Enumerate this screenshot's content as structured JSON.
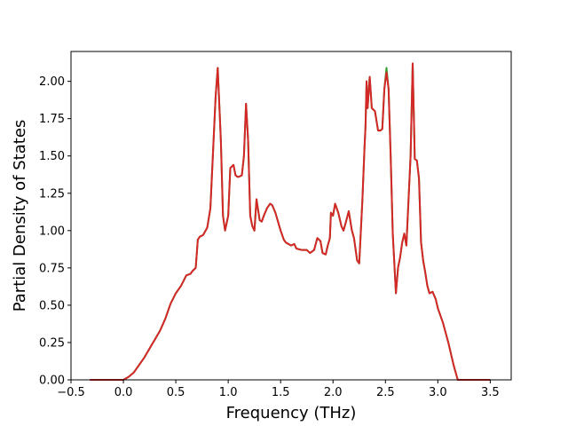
{
  "chart_data": {
    "type": "line",
    "title": "",
    "xlabel": "Frequency (THz)",
    "ylabel": "Partial Density of States",
    "xlim": [
      -0.5,
      3.7
    ],
    "ylim": [
      0.0,
      2.2
    ],
    "xticks": [
      -0.5,
      0.0,
      0.5,
      1.0,
      1.5,
      2.0,
      2.5,
      3.0,
      3.5
    ],
    "xtick_labels": [
      "−0.5",
      "0.0",
      "0.5",
      "1.0",
      "1.5",
      "2.0",
      "2.5",
      "3.0",
      "3.5"
    ],
    "yticks": [
      0.0,
      0.25,
      0.5,
      0.75,
      1.0,
      1.25,
      1.5,
      1.75,
      2.0
    ],
    "ytick_labels": [
      "0.00",
      "0.25",
      "0.50",
      "0.75",
      "1.00",
      "1.25",
      "1.50",
      "1.75",
      "2.00"
    ],
    "grid": false,
    "series": [
      {
        "color": "#2ca02c",
        "x": [
          -0.32,
          0.0,
          0.05,
          0.1,
          0.15,
          0.2,
          0.25,
          0.3,
          0.35,
          0.4,
          0.45,
          0.5,
          0.55,
          0.6,
          0.64,
          0.66,
          0.69,
          0.71,
          0.73,
          0.76,
          0.8,
          0.83,
          0.86,
          0.88,
          0.9,
          0.93,
          0.95,
          0.97,
          1.0,
          1.02,
          1.05,
          1.07,
          1.09,
          1.1,
          1.13,
          1.15,
          1.17,
          1.19,
          1.21,
          1.23,
          1.25,
          1.27,
          1.3,
          1.32,
          1.34,
          1.37,
          1.4,
          1.42,
          1.45,
          1.5,
          1.53,
          1.55,
          1.6,
          1.63,
          1.65,
          1.7,
          1.75,
          1.78,
          1.82,
          1.85,
          1.88,
          1.9,
          1.93,
          1.95,
          1.97,
          1.98,
          2.0,
          2.02,
          2.05,
          2.08,
          2.1,
          2.12,
          2.15,
          2.18,
          2.2,
          2.23,
          2.25,
          2.28,
          2.3,
          2.31,
          2.32,
          2.33,
          2.35,
          2.37,
          2.4,
          2.43,
          2.45,
          2.47,
          2.49,
          2.51,
          2.53,
          2.55,
          2.57,
          2.6,
          2.62,
          2.64,
          2.66,
          2.68,
          2.7,
          2.72,
          2.74,
          2.76,
          2.78,
          2.8,
          2.82,
          2.84,
          2.86,
          2.88,
          2.9,
          2.92,
          2.95,
          2.98,
          3.0,
          3.05,
          3.1,
          3.15,
          3.17,
          3.19,
          3.5
        ],
        "y": [
          0.0,
          0.0,
          0.02,
          0.05,
          0.1,
          0.15,
          0.21,
          0.27,
          0.33,
          0.41,
          0.51,
          0.58,
          0.63,
          0.7,
          0.71,
          0.73,
          0.75,
          0.94,
          0.96,
          0.97,
          1.02,
          1.15,
          1.6,
          1.9,
          2.09,
          1.6,
          1.1,
          1.0,
          1.1,
          1.42,
          1.44,
          1.37,
          1.36,
          1.36,
          1.37,
          1.5,
          1.85,
          1.6,
          1.1,
          1.03,
          1.0,
          1.21,
          1.07,
          1.06,
          1.1,
          1.15,
          1.18,
          1.17,
          1.12,
          1.0,
          0.94,
          0.92,
          0.9,
          0.91,
          0.88,
          0.87,
          0.87,
          0.85,
          0.87,
          0.95,
          0.93,
          0.85,
          0.84,
          0.9,
          0.95,
          1.12,
          1.1,
          1.18,
          1.12,
          1.03,
          1.0,
          1.05,
          1.13,
          1.0,
          0.95,
          0.8,
          0.78,
          1.2,
          1.55,
          1.7,
          2.0,
          1.82,
          2.03,
          1.82,
          1.8,
          1.67,
          1.67,
          1.68,
          1.95,
          2.09,
          1.95,
          1.5,
          0.98,
          0.58,
          0.75,
          0.82,
          0.92,
          0.98,
          0.9,
          1.2,
          1.5,
          2.12,
          1.48,
          1.47,
          1.35,
          0.92,
          0.8,
          0.72,
          0.63,
          0.58,
          0.59,
          0.54,
          0.48,
          0.38,
          0.25,
          0.1,
          0.05,
          0.0,
          0.0
        ]
      },
      {
        "color": "#d62728",
        "x": [
          -0.32,
          0.0,
          0.05,
          0.1,
          0.15,
          0.2,
          0.25,
          0.3,
          0.35,
          0.4,
          0.45,
          0.5,
          0.55,
          0.6,
          0.64,
          0.66,
          0.69,
          0.71,
          0.73,
          0.76,
          0.8,
          0.83,
          0.86,
          0.88,
          0.9,
          0.93,
          0.95,
          0.97,
          1.0,
          1.02,
          1.05,
          1.07,
          1.09,
          1.1,
          1.13,
          1.15,
          1.17,
          1.19,
          1.21,
          1.23,
          1.25,
          1.27,
          1.3,
          1.32,
          1.34,
          1.37,
          1.4,
          1.42,
          1.45,
          1.5,
          1.53,
          1.55,
          1.6,
          1.63,
          1.65,
          1.7,
          1.75,
          1.78,
          1.82,
          1.85,
          1.88,
          1.9,
          1.93,
          1.95,
          1.97,
          1.98,
          2.0,
          2.02,
          2.05,
          2.08,
          2.1,
          2.12,
          2.15,
          2.18,
          2.2,
          2.23,
          2.25,
          2.28,
          2.3,
          2.31,
          2.32,
          2.33,
          2.35,
          2.37,
          2.4,
          2.43,
          2.45,
          2.47,
          2.49,
          2.51,
          2.53,
          2.55,
          2.57,
          2.6,
          2.62,
          2.64,
          2.66,
          2.68,
          2.7,
          2.72,
          2.74,
          2.76,
          2.78,
          2.8,
          2.82,
          2.84,
          2.86,
          2.88,
          2.9,
          2.92,
          2.95,
          2.98,
          3.0,
          3.05,
          3.1,
          3.15,
          3.17,
          3.19,
          3.5
        ],
        "y": [
          0.0,
          0.0,
          0.02,
          0.05,
          0.1,
          0.15,
          0.21,
          0.27,
          0.33,
          0.41,
          0.51,
          0.58,
          0.63,
          0.7,
          0.71,
          0.73,
          0.75,
          0.94,
          0.96,
          0.97,
          1.02,
          1.15,
          1.6,
          1.9,
          2.09,
          1.6,
          1.1,
          1.0,
          1.1,
          1.42,
          1.44,
          1.37,
          1.36,
          1.36,
          1.37,
          1.5,
          1.85,
          1.6,
          1.1,
          1.03,
          1.0,
          1.21,
          1.07,
          1.06,
          1.1,
          1.15,
          1.18,
          1.17,
          1.12,
          1.0,
          0.94,
          0.92,
          0.9,
          0.91,
          0.88,
          0.87,
          0.87,
          0.85,
          0.87,
          0.95,
          0.93,
          0.85,
          0.84,
          0.9,
          0.95,
          1.12,
          1.1,
          1.18,
          1.12,
          1.03,
          1.0,
          1.05,
          1.13,
          1.0,
          0.95,
          0.8,
          0.78,
          1.2,
          1.55,
          1.7,
          2.0,
          1.82,
          2.03,
          1.82,
          1.8,
          1.67,
          1.67,
          1.68,
          1.95,
          2.06,
          1.95,
          1.5,
          0.98,
          0.58,
          0.75,
          0.82,
          0.92,
          0.98,
          0.9,
          1.2,
          1.5,
          2.12,
          1.48,
          1.47,
          1.35,
          0.92,
          0.8,
          0.72,
          0.63,
          0.58,
          0.59,
          0.54,
          0.48,
          0.38,
          0.25,
          0.1,
          0.05,
          0.0,
          0.0
        ]
      }
    ]
  }
}
